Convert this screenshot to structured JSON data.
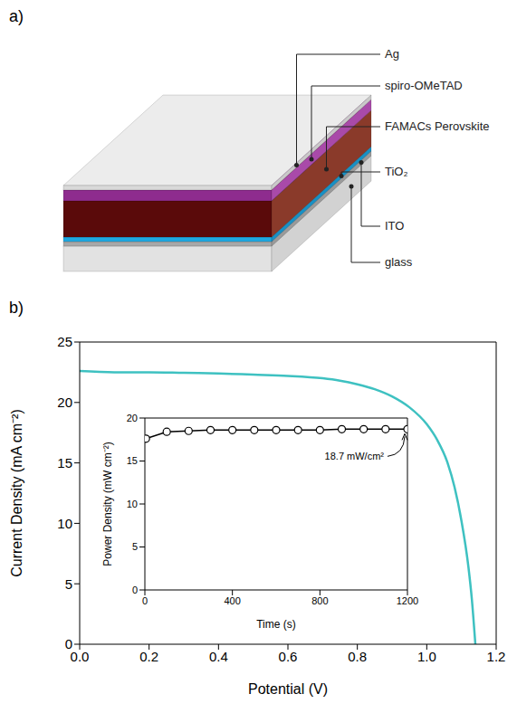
{
  "diagram": {
    "label": "a)",
    "layers": [
      "Ag",
      "spiro-OMeTAD",
      "FAMACs Perovskite",
      "TiO₂",
      "ITO",
      "glass"
    ]
  },
  "chart_data": [
    {
      "label": "b)",
      "type": "line",
      "x_label": "Potential (V)",
      "y_label": "Current Density (mA cm⁻²)",
      "x": [
        0,
        0.1,
        0.2,
        0.3,
        0.4,
        0.5,
        0.6,
        0.7,
        0.75,
        0.8,
        0.85,
        0.9,
        0.95,
        1.0,
        1.03,
        1.06,
        1.08,
        1.1,
        1.12,
        1.13,
        1.14
      ],
      "values": [
        22.6,
        22.5,
        22.5,
        22.45,
        22.4,
        22.3,
        22.2,
        22.0,
        21.8,
        21.5,
        21.1,
        20.5,
        19.6,
        18.2,
        16.9,
        15.0,
        13.0,
        10.2,
        6.4,
        3.7,
        0
      ],
      "color": "#3ec1c1",
      "xlim": [
        0,
        1.2
      ],
      "ylim": [
        0,
        25
      ],
      "xticks": [
        {
          "value": 0,
          "label": "0.0"
        },
        {
          "value": 0.2,
          "label": "0.2"
        },
        {
          "value": 0.4,
          "label": "0.4"
        },
        {
          "value": 0.6,
          "label": "0.6"
        },
        {
          "value": 0.8,
          "label": "0.8"
        },
        {
          "value": 1,
          "label": "1.0"
        },
        {
          "value": 1.2,
          "label": "1.2"
        }
      ],
      "yticks": [
        0,
        5,
        10,
        15,
        20,
        25
      ],
      "grid": false
    },
    {
      "type": "line",
      "x_label": "Time (s)",
      "y_label": "Power Density (mW cm⁻²)",
      "x": [
        5,
        100,
        200,
        300,
        400,
        500,
        600,
        700,
        800,
        900,
        1000,
        1100,
        1200
      ],
      "values": [
        17.6,
        18.4,
        18.5,
        18.6,
        18.6,
        18.6,
        18.6,
        18.6,
        18.6,
        18.7,
        18.7,
        18.7,
        18.7
      ],
      "color": "#000000",
      "marker": "circle",
      "xlim": [
        0,
        1200
      ],
      "ylim": [
        0,
        20
      ],
      "xticks": [
        0,
        400,
        800,
        1200
      ],
      "yticks": [
        0,
        5,
        10,
        15,
        20
      ],
      "grid": false,
      "annotation": {
        "text": "18.7 mW/cm²",
        "x": 1200,
        "y": 18.7
      }
    }
  ]
}
